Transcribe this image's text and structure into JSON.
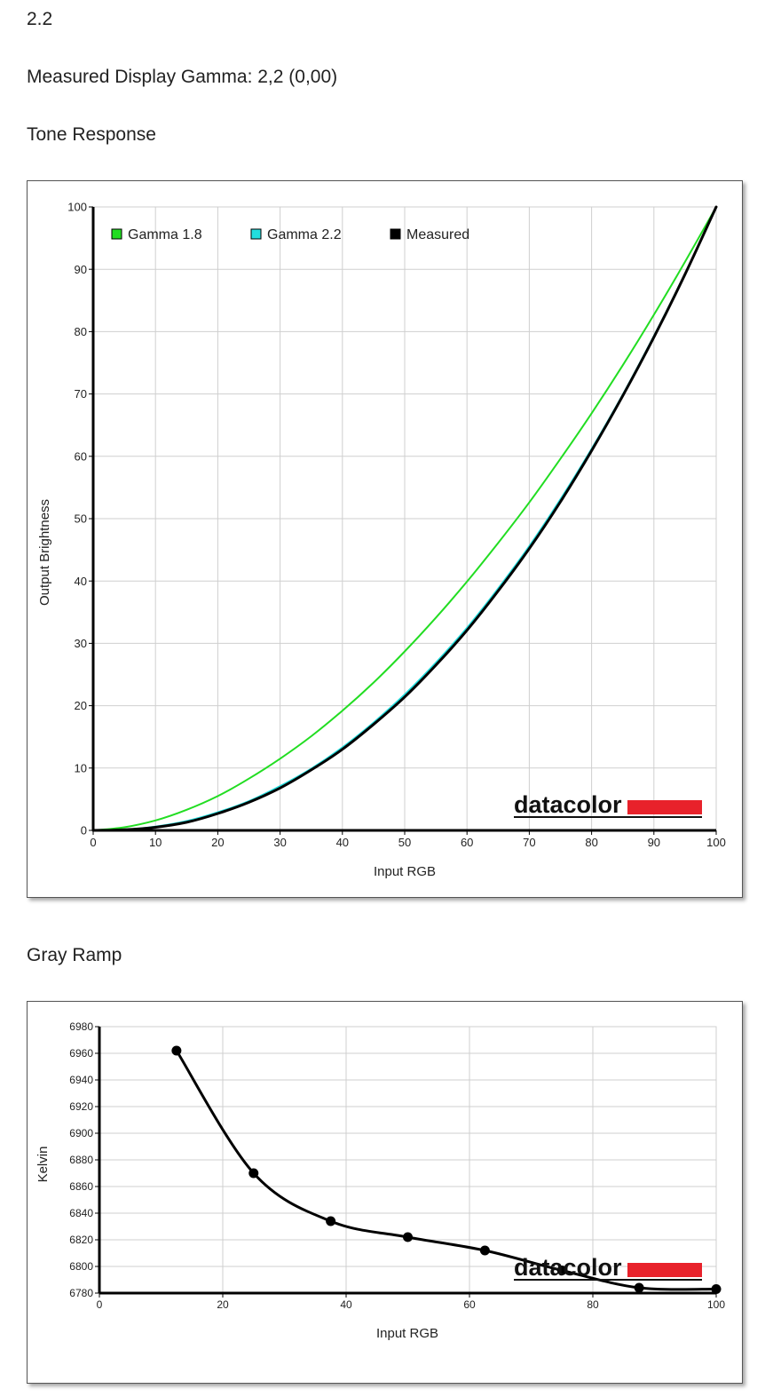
{
  "page": {
    "value_line": "2.2",
    "measured_gamma_text": "Measured Display Gamma: 2,2 (0,00)",
    "tone_section_title": "Tone Response",
    "gray_section_title": "Gray Ramp"
  },
  "logo": {
    "text": "datacolor",
    "bar_color": "#e8222b"
  },
  "chart_data": [
    {
      "type": "line",
      "xlabel": "Input RGB",
      "ylabel": "Output Brightness",
      "xlim": [
        0,
        100
      ],
      "ylim": [
        0,
        100
      ],
      "x_ticks": [
        0,
        10,
        20,
        30,
        40,
        50,
        60,
        70,
        80,
        90,
        100
      ],
      "y_ticks": [
        0,
        10,
        20,
        30,
        40,
        50,
        60,
        70,
        80,
        90,
        100
      ],
      "grid": true,
      "legend_position": "top-left",
      "series": [
        {
          "name": "Gamma 1.8",
          "color": "#22dd22",
          "x": [
            0,
            5,
            10,
            15,
            20,
            25,
            30,
            35,
            40,
            45,
            50,
            55,
            60,
            65,
            70,
            75,
            80,
            85,
            90,
            95,
            100
          ],
          "y": [
            0,
            0.5,
            1.6,
            3.3,
            5.5,
            8.3,
            11.5,
            15.1,
            19.2,
            23.7,
            28.7,
            34.1,
            39.9,
            46.1,
            52.6,
            59.6,
            66.9,
            74.6,
            82.7,
            91.2,
            100
          ]
        },
        {
          "name": "Gamma 2.2",
          "color": "#22dddd",
          "x": [
            0,
            5,
            10,
            15,
            20,
            25,
            30,
            35,
            40,
            45,
            50,
            55,
            60,
            65,
            70,
            75,
            80,
            85,
            90,
            95,
            100
          ],
          "y": [
            0,
            0.1,
            0.6,
            1.5,
            2.9,
            4.7,
            7.1,
            9.9,
            13.3,
            17.3,
            21.8,
            26.9,
            32.5,
            38.8,
            45.6,
            53.1,
            61.2,
            69.9,
            79.3,
            89.3,
            100
          ]
        },
        {
          "name": "Measured",
          "color": "#000000",
          "x": [
            0,
            5,
            10,
            15,
            20,
            25,
            30,
            35,
            40,
            45,
            50,
            55,
            60,
            65,
            70,
            75,
            80,
            85,
            90,
            95,
            100
          ],
          "y": [
            0,
            0.1,
            0.5,
            1.3,
            2.7,
            4.5,
            6.8,
            9.7,
            13.0,
            17.0,
            21.4,
            26.5,
            32.1,
            38.4,
            45.2,
            52.7,
            60.9,
            69.7,
            79.1,
            89.2,
            100
          ]
        }
      ]
    },
    {
      "type": "line",
      "xlabel": "Input RGB",
      "ylabel": "Kelvin",
      "xlim": [
        0,
        100
      ],
      "ylim": [
        6780,
        6980
      ],
      "x_ticks": [
        0,
        20,
        40,
        60,
        80,
        100
      ],
      "y_ticks": [
        6780,
        6800,
        6820,
        6840,
        6860,
        6880,
        6900,
        6920,
        6940,
        6960,
        6980
      ],
      "grid": true,
      "series": [
        {
          "color": "#000000",
          "x": [
            12.5,
            25,
            37.5,
            50,
            62.5,
            75,
            87.5,
            100
          ],
          "y": [
            6962,
            6870,
            6834,
            6822,
            6812,
            6797,
            6784,
            6783
          ]
        }
      ]
    }
  ]
}
